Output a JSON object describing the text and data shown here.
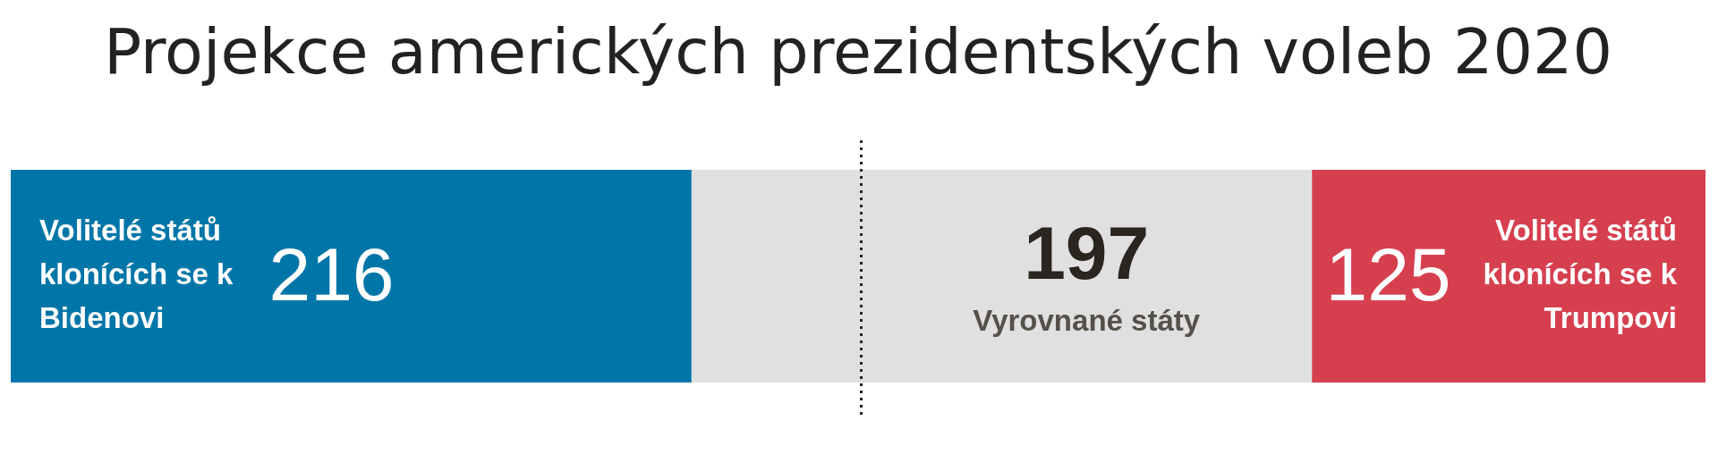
{
  "chart_data": {
    "type": "bar",
    "orientation": "horizontal",
    "stacked": true,
    "title": "Projekce amerických prezidentských voleb 2020",
    "categories": [
      null
    ],
    "series": [
      {
        "name": "Volitelé států klonících se k Bidenovi",
        "color": "#0076a8",
        "values": [
          216
        ]
      },
      {
        "name": "Vyrovnané státy",
        "color": "#e0e0e0",
        "values": [
          197
        ]
      },
      {
        "name": "Volitelé států klonících se k Trumpovi",
        "color": "#d63f4e",
        "values": [
          125
        ]
      }
    ],
    "ref_lines": [
      {
        "axis": "x",
        "value": 270,
        "line_style": "dotted",
        "color": "#222222"
      }
    ],
    "data_labels": true,
    "legend": false
  }
}
